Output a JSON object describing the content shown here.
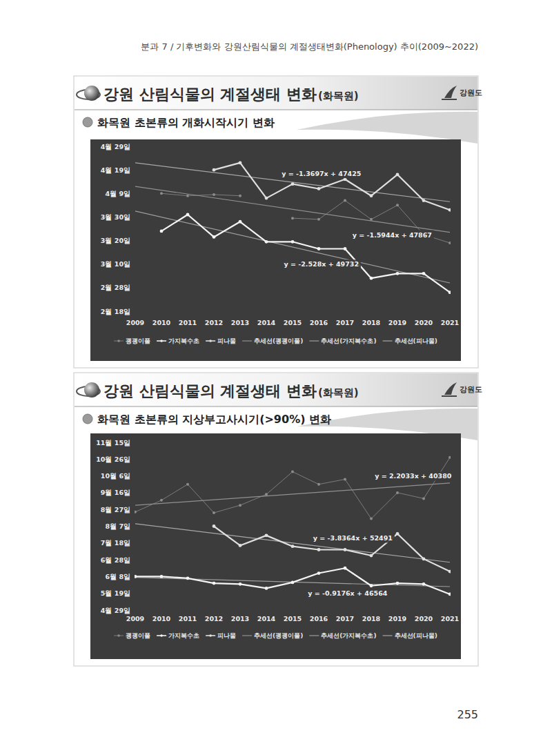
{
  "header": {
    "running_title": "분과 7 / 기후변화와 강원산림식물의 계절생태변화(Phenology) 추이(2009~2022)",
    "page_number": "255"
  },
  "slides": [
    {
      "title": "강원 산림식물의 계절생태 변화",
      "title_suffix": "(화목원)",
      "logo": "강원도"
    },
    {
      "title": "강원 산림식물의 계절생태 변화",
      "title_suffix": "(화목원)",
      "logo": "강원도"
    }
  ],
  "chart_data": [
    {
      "type": "line",
      "title": "화목원 초본류의 개화시작시기 변화",
      "x": [
        2009,
        2010,
        2011,
        2012,
        2013,
        2014,
        2015,
        2016,
        2017,
        2018,
        2019,
        2020,
        2021
      ],
      "xlim": [
        2009,
        2021
      ],
      "xticks": [
        2009,
        2010,
        2011,
        2012,
        2013,
        2014,
        2015,
        2016,
        2017,
        2018,
        2019,
        2020,
        2021
      ],
      "ylim": [
        49,
        119
      ],
      "yticks": [
        {
          "value": 49,
          "label": "2월 18일"
        },
        {
          "value": 59,
          "label": "2월 28일"
        },
        {
          "value": 69,
          "label": "3월 10일"
        },
        {
          "value": 79,
          "label": "3월 20일"
        },
        {
          "value": 89,
          "label": "3월 30일"
        },
        {
          "value": 99,
          "label": "4월 9일"
        },
        {
          "value": 109,
          "label": "4월 19일"
        },
        {
          "value": 119,
          "label": "4월 29일"
        }
      ],
      "grid": false,
      "legend": "bottom",
      "series": [
        {
          "name": "괭괭이풀",
          "color": "#8c8c8c",
          "marker": "dot",
          "line_style": "faint",
          "values": [
            null,
            99,
            98,
            98.5,
            98,
            null,
            88.5,
            88,
            96,
            88,
            94,
            81.5,
            78
          ]
        },
        {
          "name": "가지복수초",
          "color": "#f4f4f4",
          "marker": "dot",
          "line_style": "solid",
          "values": [
            null,
            83,
            90,
            80.5,
            87,
            78.5,
            78.5,
            75.5,
            75.5,
            63,
            65,
            65,
            57
          ]
        },
        {
          "name": "피나물",
          "color": "#e0e0e0",
          "marker": "dot",
          "line_style": "solid",
          "values": [
            null,
            null,
            null,
            109,
            112,
            97,
            103,
            101,
            105,
            98,
            107,
            96,
            92
          ]
        },
        {
          "name": "추세선(괭괭이풀)",
          "color": "#9a9a9a",
          "marker": "none",
          "line_style": "trend",
          "x": [
            2009,
            2021
          ],
          "values": [
            102,
            82.5
          ]
        },
        {
          "name": "추세선(가지복수초)",
          "color": "#a8a8a8",
          "marker": "none",
          "line_style": "trend",
          "x": [
            2009,
            2021
          ],
          "values": [
            91.5,
            61
          ]
        },
        {
          "name": "추세선(피나물)",
          "color": "#b4b4b4",
          "marker": "none",
          "line_style": "trend",
          "x": [
            2009,
            2021
          ],
          "values": [
            112,
            95.5
          ]
        }
      ],
      "annotations": [
        {
          "text": "y = -1.3697x + 47425",
          "x": 2016.1,
          "y": 107.4
        },
        {
          "text": "y = -1.5944x + 47867",
          "x": 2018.8,
          "y": 81.5
        },
        {
          "text": "y = -2.528x + 49732",
          "x": 2016.1,
          "y": 69
        }
      ]
    },
    {
      "type": "line",
      "title": "화목원 초본류의 지상부고사시기(>90%) 변화",
      "x": [
        2009,
        2010,
        2011,
        2012,
        2013,
        2014,
        2015,
        2016,
        2017,
        2018,
        2019,
        2020,
        2021
      ],
      "xlim": [
        2009,
        2021
      ],
      "xticks": [
        2009,
        2010,
        2011,
        2012,
        2013,
        2014,
        2015,
        2016,
        2017,
        2018,
        2019,
        2020,
        2021
      ],
      "ylim": [
        119,
        319
      ],
      "yticks": [
        {
          "value": 119,
          "label": "4월 29일"
        },
        {
          "value": 139,
          "label": "5월 19일"
        },
        {
          "value": 159,
          "label": "6월 8일"
        },
        {
          "value": 179,
          "label": "6월 28일"
        },
        {
          "value": 199,
          "label": "7월 18일"
        },
        {
          "value": 219,
          "label": "8월 7일"
        },
        {
          "value": 239,
          "label": "8월 27일"
        },
        {
          "value": 259,
          "label": "9월 16일"
        },
        {
          "value": 279,
          "label": "10월 6일"
        },
        {
          "value": 299,
          "label": "10월 26일"
        },
        {
          "value": 319,
          "label": "11월 15일"
        }
      ],
      "grid": false,
      "legend": "bottom",
      "series": [
        {
          "name": "괭괭이풀",
          "color": "#8c8c8c",
          "marker": "dot",
          "line_style": "faint",
          "values": [
            236,
            250,
            269,
            235,
            244,
            257,
            284,
            269,
            275,
            228,
            259,
            252,
            301
          ]
        },
        {
          "name": "가지복수초",
          "color": "#f4f4f4",
          "marker": "dot",
          "line_style": "solid",
          "values": [
            159,
            159,
            157,
            151,
            150,
            145,
            152,
            163,
            169,
            148,
            151,
            150,
            138
          ]
        },
        {
          "name": "피나물",
          "color": "#e0e0e0",
          "marker": "dot",
          "line_style": "solid",
          "values": [
            null,
            null,
            null,
            219,
            196,
            208,
            195,
            191,
            191,
            184,
            210,
            180,
            165
          ]
        },
        {
          "name": "추세선(괭괭이풀)",
          "color": "#9a9a9a",
          "marker": "none",
          "line_style": "trend",
          "x": [
            2009,
            2021
          ],
          "values": [
            244,
            270.5
          ]
        },
        {
          "name": "추세선(가지복수초)",
          "color": "#a8a8a8",
          "marker": "none",
          "line_style": "trend",
          "x": [
            2009,
            2021
          ],
          "values": [
            158,
            147
          ]
        },
        {
          "name": "추세선(피나물)",
          "color": "#b4b4b4",
          "marker": "none",
          "line_style": "trend",
          "x": [
            2009,
            2021
          ],
          "values": [
            222,
            176
          ]
        }
      ],
      "annotations": [
        {
          "text": "y = 2.2033x + 40380",
          "x": 2019.6,
          "y": 278.7
        },
        {
          "text": "y = -3.8364x + 52491",
          "x": 2017.3,
          "y": 204.6
        },
        {
          "text": "y = -0.9176x + 46564",
          "x": 2017.1,
          "y": 138.8
        }
      ]
    }
  ]
}
